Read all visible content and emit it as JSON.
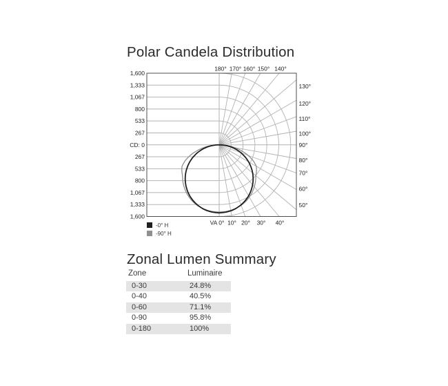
{
  "header": {
    "title": "Polar Candela Distribution"
  },
  "polar_chart": {
    "left_ticks": [
      "1,600",
      "1,333",
      "1,067",
      "800",
      "533",
      "267",
      "CD: 0",
      "267",
      "533",
      "800",
      "1,067",
      "1,333",
      "1,600"
    ],
    "top_ticks": [
      "180°",
      "170°",
      "160°",
      "150°",
      "140°"
    ],
    "right_ticks": [
      "130°",
      "120°",
      "110°",
      "100°",
      "90°",
      "80°",
      "70°",
      "60°",
      "50°"
    ],
    "bottom_ticks": [
      "VA 0°",
      "10°",
      "20°",
      "30°",
      "40°"
    ],
    "legend": [
      {
        "label": "-0° H",
        "color": "#1f1f1f"
      },
      {
        "label": "-90° H",
        "color": "#8f8f8f"
      }
    ],
    "grid_color": "#b2b2b2",
    "border_color": "#4f4f4f",
    "tick_color": "#222222"
  },
  "chart_data": {
    "type": "line",
    "subtype": "polar-candela-distribution",
    "title": "Polar Candela Distribution",
    "radial_axis": {
      "label": "CD",
      "ticks": [
        0,
        267,
        533,
        800,
        1067,
        1333,
        1600
      ],
      "max": 1600
    },
    "angular_axis": {
      "start_deg": 0,
      "end_deg": 180,
      "step_deg": 10,
      "zero_label": "VA 0°"
    },
    "legend_position": "bottom-left",
    "grid": true,
    "series": [
      {
        "name": "-0° H",
        "color": "#1f1f1f",
        "angles_deg": [
          0,
          5,
          10,
          15,
          20,
          25,
          30,
          35,
          40,
          45,
          50,
          55,
          60,
          65,
          70,
          75,
          80,
          85,
          90
        ],
        "candela": [
          1520,
          1512,
          1497,
          1468,
          1428,
          1377,
          1316,
          1245,
          1164,
          1075,
          977,
          872,
          760,
          643,
          520,
          393,
          264,
          132,
          0
        ]
      },
      {
        "name": "-90° H",
        "color": "#8f8f8f",
        "angles_deg": [
          0,
          5,
          10,
          15,
          20,
          25,
          30,
          35,
          40,
          45,
          50,
          55,
          60,
          65,
          70,
          75,
          80,
          85,
          90
        ],
        "candela": [
          1500,
          1496,
          1486,
          1466,
          1438,
          1398,
          1348,
          1290,
          1222,
          1150,
          1070,
          1020,
          960,
          840,
          690,
          520,
          345,
          170,
          0
        ]
      }
    ]
  },
  "zonal": {
    "title": "Zonal Lumen Summary",
    "columns": [
      "Zone",
      "Luminaire"
    ],
    "rows": [
      [
        "0-30",
        "24.8%"
      ],
      [
        "0-40",
        "40.5%"
      ],
      [
        "0-60",
        "71.1%"
      ],
      [
        "0-90",
        "95.8%"
      ],
      [
        "0-180",
        "100%"
      ]
    ],
    "row_stripe_color": "#e4e4e4"
  }
}
